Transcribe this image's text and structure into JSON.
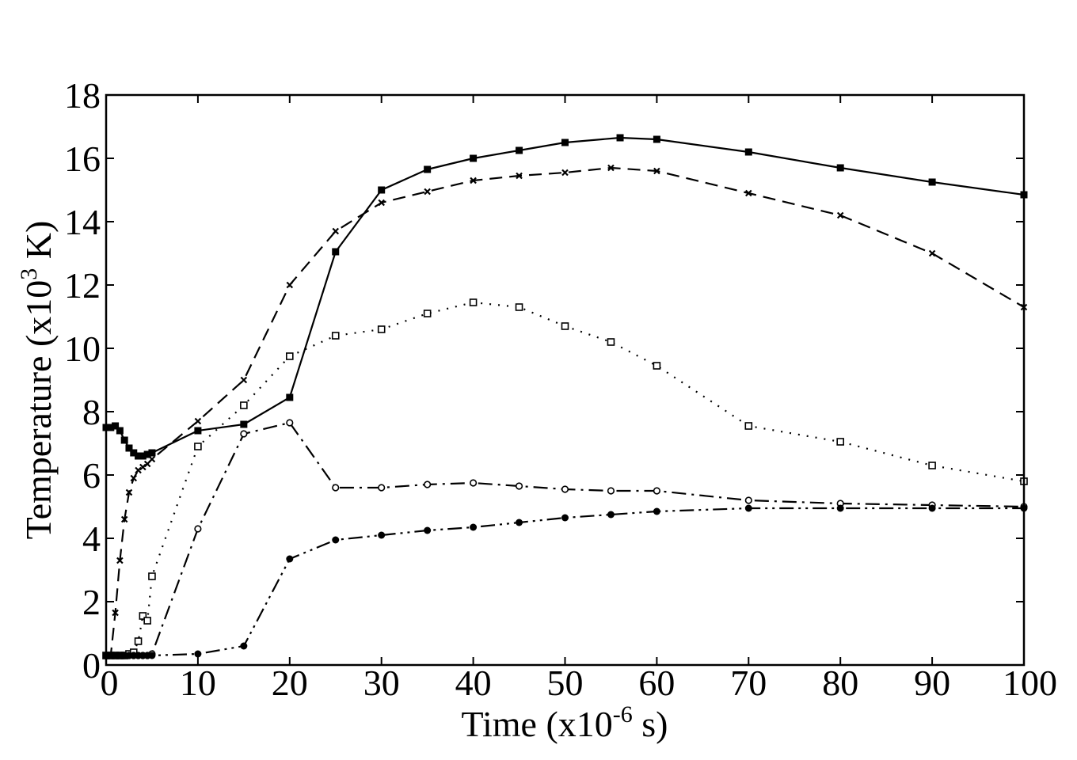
{
  "chart_data": {
    "type": "line",
    "xlabel": {
      "prefix": "Time (x10",
      "sup": "-6",
      "suffix": " s)"
    },
    "ylabel": {
      "prefix": "Temperature (x10",
      "sup": "3",
      "suffix": " K)"
    },
    "xlim": [
      0,
      100
    ],
    "ylim": [
      0,
      18
    ],
    "xticks": [
      0,
      10,
      20,
      30,
      40,
      50,
      60,
      70,
      80,
      90,
      100
    ],
    "yticks": [
      0,
      2,
      4,
      6,
      8,
      10,
      12,
      14,
      16,
      18
    ],
    "grid": false,
    "legend": "none",
    "series": [
      {
        "style": "solid",
        "marker": "filled-square",
        "color": "#000000",
        "x": [
          0,
          0.5,
          1,
          1.5,
          2,
          2.5,
          3,
          3.5,
          4,
          4.5,
          5,
          10,
          15,
          20,
          25,
          30,
          35,
          40,
          45,
          50,
          56,
          60,
          70,
          80,
          90,
          100
        ],
        "y": [
          7.5,
          7.5,
          7.55,
          7.4,
          7.1,
          6.85,
          6.7,
          6.6,
          6.6,
          6.65,
          6.7,
          7.4,
          7.6,
          8.45,
          13.05,
          15.0,
          15.65,
          16.0,
          16.25,
          16.5,
          16.65,
          16.6,
          16.2,
          15.7,
          15.25,
          14.85
        ]
      },
      {
        "style": "dashed",
        "marker": "cross",
        "color": "#000000",
        "x": [
          0,
          0.5,
          1,
          1.5,
          2,
          2.5,
          3,
          3.5,
          4,
          4.5,
          5,
          10,
          15,
          20,
          25,
          30,
          35,
          40,
          45,
          50,
          55,
          60,
          70,
          80,
          90,
          100
        ],
        "y": [
          0.3,
          0.3,
          1.65,
          3.3,
          4.6,
          5.45,
          5.9,
          6.15,
          6.25,
          6.35,
          6.5,
          7.7,
          9.0,
          12.0,
          13.7,
          14.6,
          14.95,
          15.3,
          15.45,
          15.55,
          15.7,
          15.6,
          14.9,
          14.2,
          13.0,
          11.3
        ]
      },
      {
        "style": "dotted",
        "marker": "open-square",
        "color": "#000000",
        "x": [
          0,
          0.5,
          1,
          1.5,
          2,
          2.5,
          3,
          3.5,
          4,
          4.5,
          5,
          10,
          15,
          20,
          25,
          30,
          35,
          40,
          45,
          50,
          55,
          60,
          70,
          80,
          90,
          100
        ],
        "y": [
          0.3,
          0.3,
          0.3,
          0.3,
          0.3,
          0.35,
          0.4,
          0.75,
          1.55,
          1.4,
          2.8,
          6.9,
          8.2,
          9.75,
          10.4,
          10.6,
          11.1,
          11.45,
          11.3,
          10.7,
          10.2,
          9.45,
          7.55,
          7.05,
          6.3,
          5.8
        ]
      },
      {
        "style": "dash-dot",
        "marker": "open-circle",
        "color": "#000000",
        "x": [
          0,
          0.5,
          1,
          1.5,
          2,
          2.5,
          3,
          3.5,
          4,
          4.5,
          5,
          10,
          15,
          20,
          25,
          30,
          35,
          40,
          45,
          50,
          55,
          60,
          70,
          80,
          90,
          100
        ],
        "y": [
          0.3,
          0.3,
          0.3,
          0.3,
          0.3,
          0.3,
          0.3,
          0.3,
          0.3,
          0.3,
          0.35,
          4.3,
          7.3,
          7.65,
          5.6,
          5.6,
          5.7,
          5.75,
          5.65,
          5.55,
          5.5,
          5.5,
          5.2,
          5.1,
          5.05,
          5.0
        ]
      },
      {
        "style": "dash-dot-dot",
        "marker": "filled-circle",
        "color": "#000000",
        "x": [
          0,
          0.5,
          1,
          1.5,
          2,
          2.5,
          3,
          3.5,
          4,
          4.5,
          5,
          10,
          15,
          20,
          25,
          30,
          35,
          40,
          45,
          50,
          55,
          60,
          70,
          80,
          90,
          100
        ],
        "y": [
          0.3,
          0.3,
          0.3,
          0.3,
          0.3,
          0.3,
          0.3,
          0.3,
          0.3,
          0.3,
          0.3,
          0.35,
          0.6,
          3.35,
          3.95,
          4.1,
          4.25,
          4.35,
          4.5,
          4.65,
          4.75,
          4.85,
          4.95,
          4.95,
          4.95,
          4.95
        ]
      }
    ]
  }
}
